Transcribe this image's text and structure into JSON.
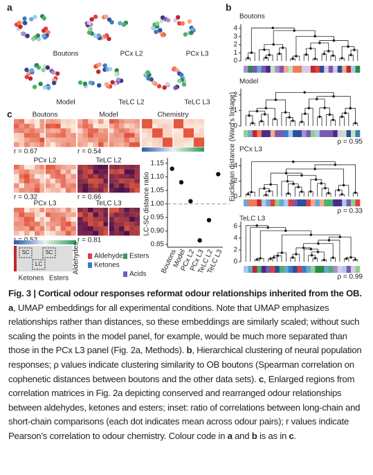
{
  "panels": {
    "a": "a",
    "b": "b",
    "c": "c"
  },
  "umap": {
    "labels": [
      "Boutons",
      "PCx L2",
      "PCx L3",
      "Model",
      "TeLC L2",
      "TeLC L3"
    ]
  },
  "dendrograms": {
    "ylabel": "Euclidean distance (Ward's linkage)",
    "items": [
      {
        "title": "Boutons",
        "ylim": [
          0,
          4.5
        ],
        "yticks": [
          0,
          1,
          2,
          3,
          4
        ],
        "rho": null
      },
      {
        "title": "Model",
        "ylim": [
          0,
          2.4
        ],
        "yticks": [
          0,
          1,
          2
        ],
        "rho": "ρ = 0.95"
      },
      {
        "title": "PCx L3",
        "ylim": [
          0,
          5
        ],
        "yticks": [
          0,
          2,
          4
        ],
        "rho": "ρ = 0.33"
      },
      {
        "title": "TeLC L3",
        "ylim": [
          0,
          6.8
        ],
        "yticks": [
          0,
          2,
          4,
          6
        ],
        "rho": "ρ = 0.99"
      }
    ]
  },
  "heatmaps": [
    {
      "title": "Boutons",
      "r": "r = 0.67"
    },
    {
      "title": "Model",
      "r": "r = 0.54"
    },
    {
      "title": "Chemistry",
      "r": null
    },
    {
      "title": "PCx L2",
      "r": "r = 0.32"
    },
    {
      "title": "TeLC L2",
      "r": "r = 0.66"
    },
    {
      "title": "PCx L3",
      "r": "r = 0.52"
    },
    {
      "title": "TeLC L3",
      "r": "r = 0.81"
    }
  ],
  "inset": {
    "boxes": [
      "SC",
      "SC",
      "LC"
    ],
    "xlabels": [
      "Ketones",
      "Esters"
    ],
    "ylabel": "Aldehydes"
  },
  "legend": [
    "Aldehydes",
    "Esters",
    "Ketones",
    "Acids"
  ],
  "scatter": {
    "ylabel": "LC-SC distance ratio",
    "categories": [
      "Boutons",
      "Model",
      "PCx L2",
      "PCx L3",
      "TeLC L2",
      "TeLC L3"
    ],
    "values": [
      1.13,
      1.08,
      1.01,
      0.865,
      0.94,
      1.11
    ],
    "ylim": [
      0.84,
      1.16
    ],
    "yticks": [
      0.85,
      {
        "value": 0.9,
        "label": "0.90"
      },
      0.95,
      {
        "value": 1,
        "label": "1.00"
      },
      1.05,
      {
        "value": 1.1,
        "label": "1.10"
      },
      1.15
    ],
    "reference_line": 1
  },
  "caption": [
    {
      "text": "Fig. 3 | Cortical odour responses reformat odour relationships inherited from the OB. ",
      "bold": true
    },
    {
      "text": "a",
      "bold": true
    },
    {
      "text": ", UMAP embeddings for all experimental conditions. Note that UMAP emphasizes relationships rather than distances, so these embeddings are similarly scaled; without such scaling the points in the model panel, for example, would be much more separated than those in the PCx L3 panel (Fig. 2a, Methods). ",
      "bold": false
    },
    {
      "text": "b",
      "bold": true
    },
    {
      "text": ", Hierarchical clustering of neural population responses; ρ values indicate clustering similarity to OB boutons (Spearman correlation on cophenetic distances between boutons and the other data sets). ",
      "bold": false
    },
    {
      "text": "c",
      "bold": true
    },
    {
      "text": ", Enlarged regions from correlation matrices in Fig. 2a depicting conserved and rearranged odour relationships between aldehydes, ketones and esters; inset: ratio of correlations between long-chain and short-chain comparisons (each dot indicates mean across odour pairs); r values indicate Pearson’s correlation to odour chemistry. Colour code in ",
      "bold": false
    },
    {
      "text": "a",
      "bold": true
    },
    {
      "text": " and ",
      "bold": false
    },
    {
      "text": "b",
      "bold": true
    },
    {
      "text": " is as in ",
      "bold": false
    },
    {
      "text": "c",
      "bold": true
    },
    {
      "text": ".",
      "bold": false
    }
  ]
}
